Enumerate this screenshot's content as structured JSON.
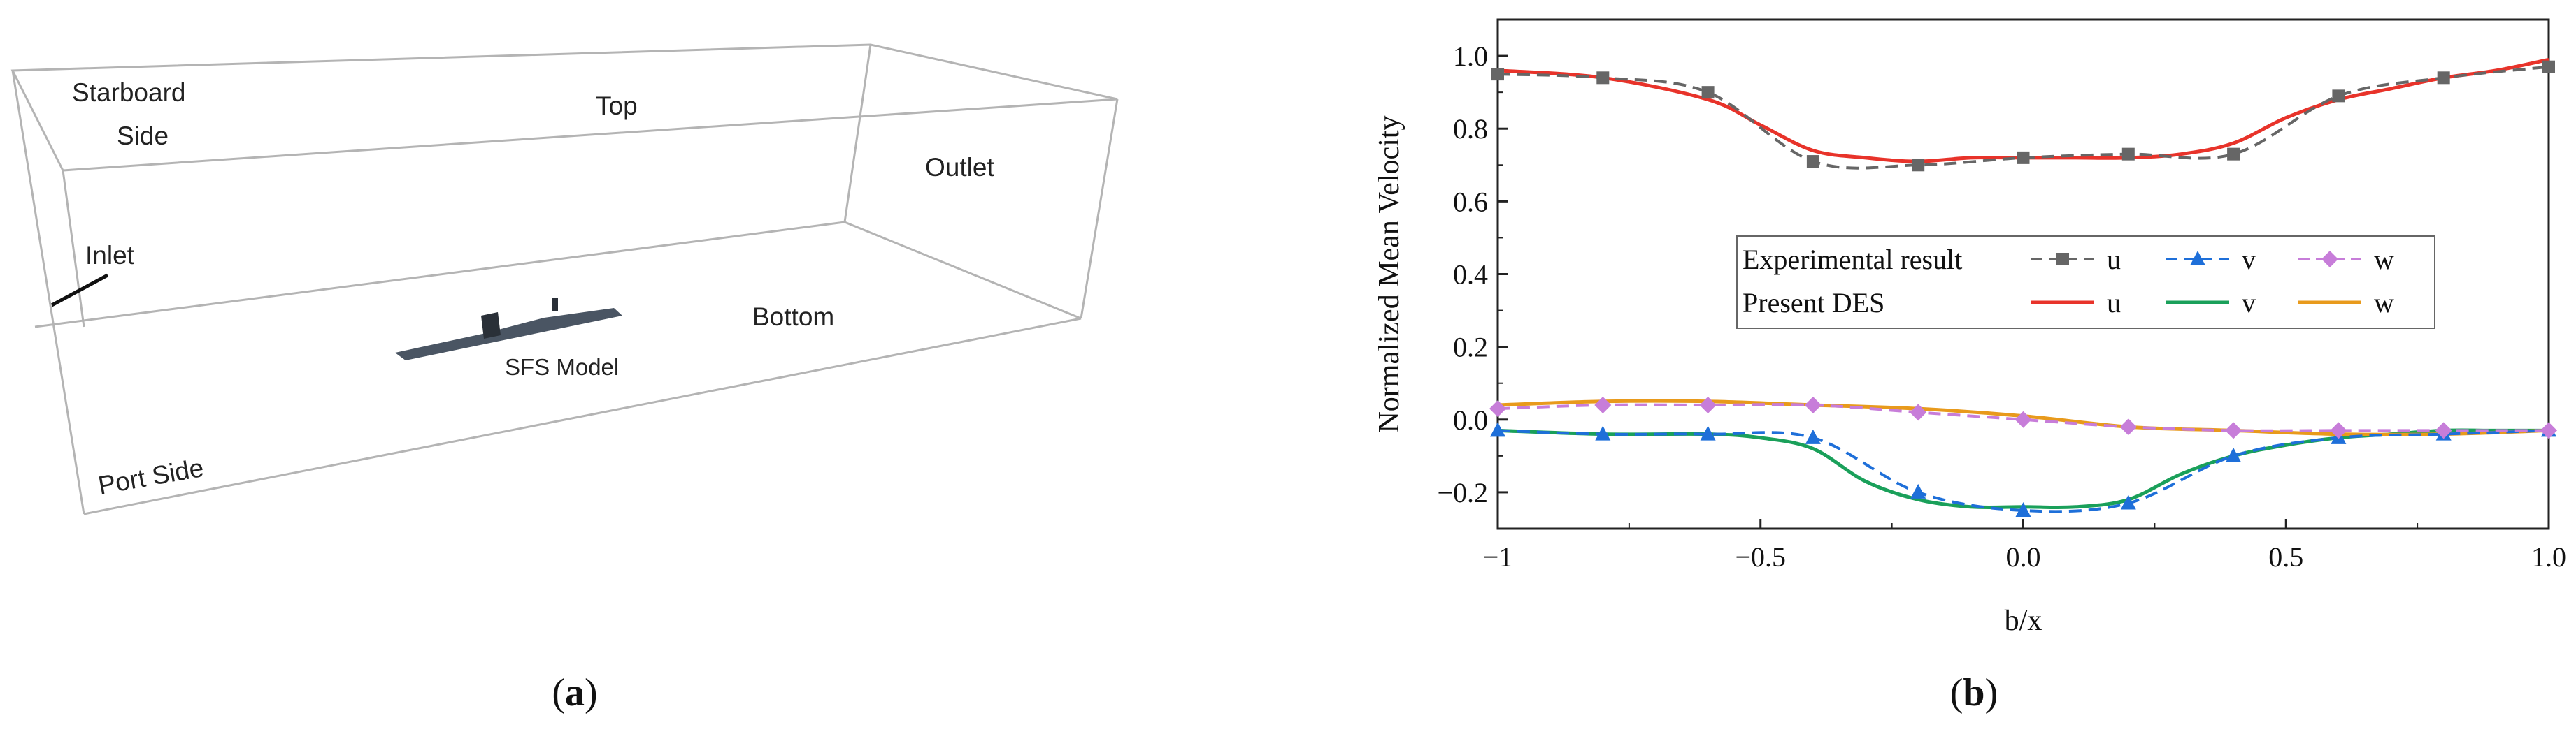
{
  "panel_a": {
    "caption_open": "(",
    "caption_letter": "a",
    "caption_close": ")",
    "labels": {
      "starboard_line1": "Starboard",
      "starboard_line2": "Side",
      "top": "Top",
      "outlet": "Outlet",
      "inlet": "Inlet",
      "bottom": "Bottom",
      "model": "SFS Model",
      "port": "Port Side"
    },
    "colors": {
      "box_edge": "#b4b4b4",
      "model": "#4a5563",
      "model_dark": "#2a3038"
    }
  },
  "panel_b": {
    "caption_open": "(",
    "caption_letter": "b",
    "caption_close": ")",
    "legend": {
      "experimental": "Experimental result",
      "present": "Present DES"
    }
  },
  "chart_data": {
    "type": "line",
    "title": "",
    "xlabel": "b/x",
    "ylabel": "Normalized Mean Velocity",
    "xlim": [
      -1,
      1
    ],
    "ylim": [
      -0.3,
      1.1
    ],
    "xticks": [
      -1,
      -0.5,
      0,
      0.5,
      1
    ],
    "xtick_labels": [
      "−1",
      "−0.5",
      "0.0",
      "0.5",
      "1.0"
    ],
    "yticks": [
      -0.2,
      0,
      0.2,
      0.4,
      0.6,
      0.8,
      1.0
    ],
    "ytick_labels": [
      "−0.2",
      "0.0",
      "0.2",
      "0.4",
      "0.6",
      "0.8",
      "1.0"
    ],
    "legend_position": "center-right",
    "grid": false,
    "series": [
      {
        "name": "u",
        "group": "Experimental result",
        "style": "dashed",
        "marker": "square",
        "color": "#666666",
        "x": [
          -1,
          -0.8,
          -0.6,
          -0.4,
          -0.2,
          0,
          0.2,
          0.4,
          0.6,
          0.8,
          1
        ],
        "y": [
          0.95,
          0.94,
          0.9,
          0.71,
          0.7,
          0.72,
          0.73,
          0.73,
          0.89,
          0.94,
          0.97
        ]
      },
      {
        "name": "v",
        "group": "Experimental result",
        "style": "dashed",
        "marker": "triangle",
        "color": "#1e6fd9",
        "x": [
          -1,
          -0.8,
          -0.6,
          -0.4,
          -0.2,
          0,
          0.2,
          0.4,
          0.6,
          0.8,
          1
        ],
        "y": [
          -0.03,
          -0.04,
          -0.04,
          -0.05,
          -0.2,
          -0.25,
          -0.23,
          -0.1,
          -0.05,
          -0.04,
          -0.03
        ]
      },
      {
        "name": "w",
        "group": "Experimental result",
        "style": "dashed",
        "marker": "diamond",
        "color": "#c77dd9",
        "x": [
          -1,
          -0.8,
          -0.6,
          -0.4,
          -0.2,
          0,
          0.2,
          0.4,
          0.6,
          0.8,
          1
        ],
        "y": [
          0.03,
          0.04,
          0.04,
          0.04,
          0.02,
          0.0,
          -0.02,
          -0.03,
          -0.03,
          -0.03,
          -0.03
        ]
      },
      {
        "name": "u",
        "group": "Present DES",
        "style": "solid",
        "marker": "none",
        "color": "#e8332a",
        "x": [
          -1,
          -0.8,
          -0.6,
          -0.5,
          -0.4,
          -0.3,
          -0.2,
          -0.1,
          0,
          0.1,
          0.2,
          0.3,
          0.4,
          0.5,
          0.6,
          0.7,
          0.8,
          0.9,
          1
        ],
        "y": [
          0.96,
          0.94,
          0.88,
          0.81,
          0.74,
          0.72,
          0.71,
          0.72,
          0.72,
          0.72,
          0.72,
          0.73,
          0.76,
          0.83,
          0.88,
          0.91,
          0.94,
          0.96,
          0.99
        ]
      },
      {
        "name": "v",
        "group": "Present DES",
        "style": "solid",
        "marker": "none",
        "color": "#1aa05a",
        "x": [
          -1,
          -0.8,
          -0.6,
          -0.5,
          -0.4,
          -0.3,
          -0.2,
          -0.1,
          0,
          0.1,
          0.2,
          0.3,
          0.4,
          0.5,
          0.6,
          0.7,
          0.8,
          0.9,
          1
        ],
        "y": [
          -0.03,
          -0.04,
          -0.04,
          -0.05,
          -0.08,
          -0.17,
          -0.22,
          -0.24,
          -0.24,
          -0.24,
          -0.22,
          -0.15,
          -0.1,
          -0.07,
          -0.05,
          -0.04,
          -0.03,
          -0.03,
          -0.03
        ]
      },
      {
        "name": "w",
        "group": "Present DES",
        "style": "solid",
        "marker": "none",
        "color": "#e89a1c",
        "x": [
          -1,
          -0.8,
          -0.6,
          -0.4,
          -0.2,
          0,
          0.2,
          0.4,
          0.6,
          0.8,
          1
        ],
        "y": [
          0.04,
          0.05,
          0.05,
          0.04,
          0.03,
          0.01,
          -0.02,
          -0.03,
          -0.04,
          -0.04,
          -0.03
        ]
      }
    ]
  }
}
